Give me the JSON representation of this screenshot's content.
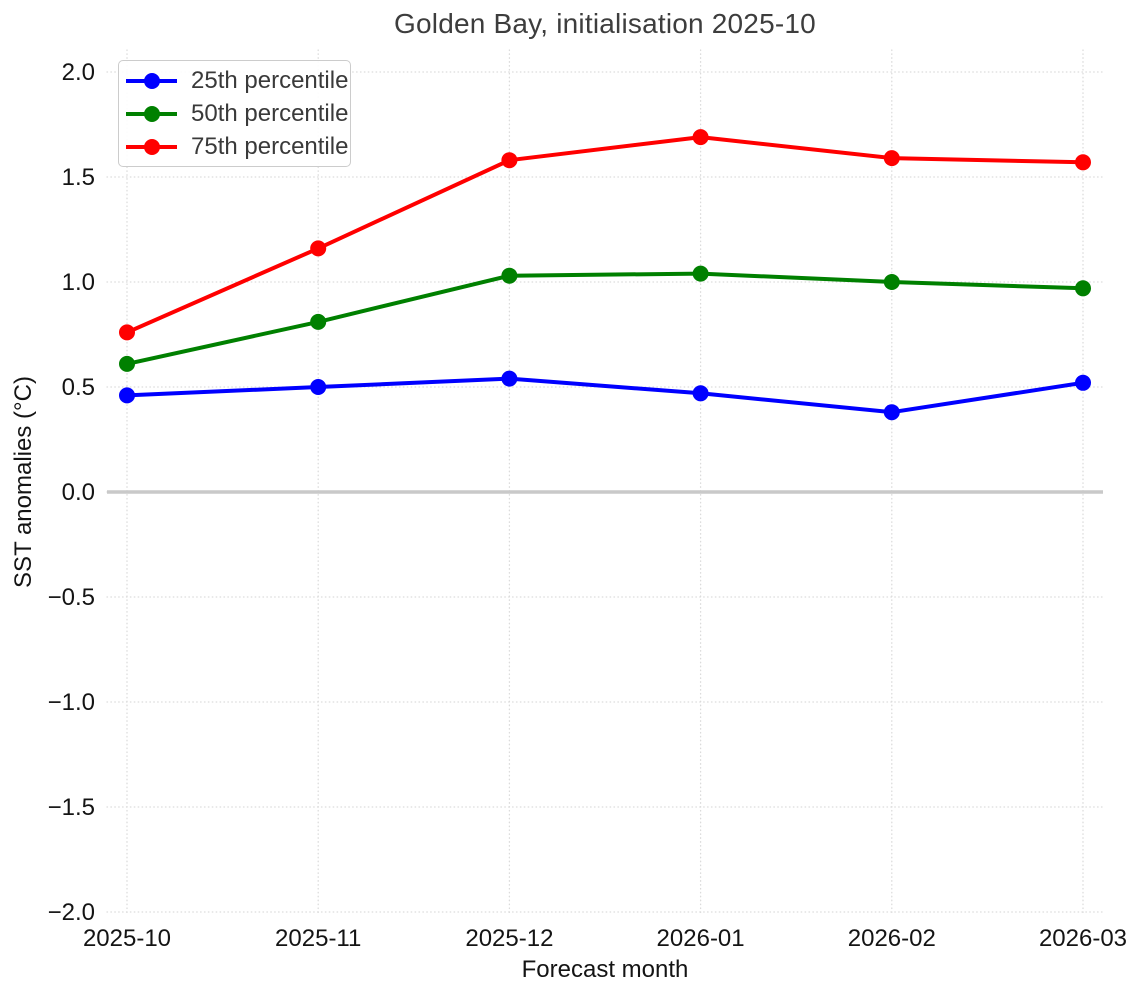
{
  "chart_data": {
    "type": "line",
    "title": "Golden Bay, initialisation 2025-10",
    "xlabel": "Forecast month",
    "ylabel": "SST anomalies (°C)",
    "categories": [
      "2025-10",
      "2025-11",
      "2025-12",
      "2026-01",
      "2026-02",
      "2026-03"
    ],
    "series": [
      {
        "name": "25th percentile",
        "color": "#0000ff",
        "values": [
          0.46,
          0.5,
          0.54,
          0.47,
          0.38,
          0.52
        ]
      },
      {
        "name": "50th percentile",
        "color": "#008000",
        "values": [
          0.61,
          0.81,
          1.03,
          1.04,
          1.0,
          0.97
        ]
      },
      {
        "name": "75th percentile",
        "color": "#ff0000",
        "values": [
          0.76,
          1.16,
          1.58,
          1.69,
          1.59,
          1.57
        ]
      }
    ],
    "ylim": [
      -2.0,
      2.0
    ],
    "yticks": {
      "values": [
        -2.0,
        -1.5,
        -1.0,
        -0.5,
        0.0,
        0.5,
        1.0,
        1.5,
        2.0
      ],
      "labels": [
        "−2.0",
        "−1.5",
        "−1.0",
        "−0.5",
        "0.0",
        "0.5",
        "1.0",
        "1.5",
        "2.0"
      ]
    },
    "grid": true,
    "grid_style": "dotted",
    "legend_position": "upper-left",
    "marker": "circle",
    "zero_line": {
      "value": 0.0,
      "color": "#c9c9c9"
    },
    "colors": {
      "background": "#ffffff",
      "grid": "#dbdbdb",
      "title_text": "#3d3d3d",
      "tick_text": "#141414",
      "legend_text": "#3a3a3a",
      "legend_border": "#cccccc"
    }
  }
}
